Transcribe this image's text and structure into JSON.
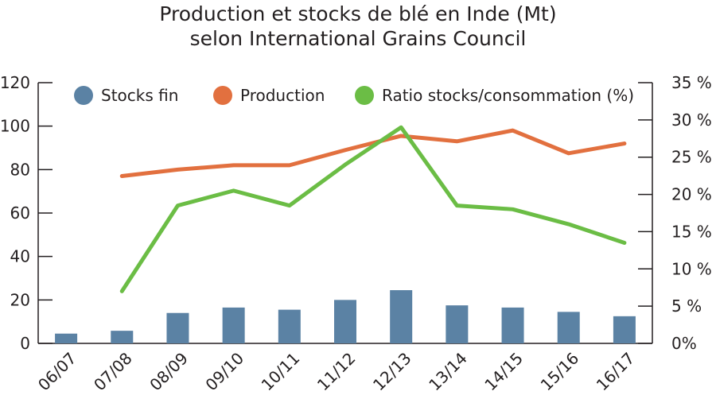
{
  "chart_data": {
    "type": "bar+line",
    "title_line1": "Production et stocks de blé en Inde (Mt)",
    "title_line2": "selon International Grains Council",
    "categories": [
      "06/07",
      "07/08",
      "08/09",
      "09/10",
      "10/11",
      "11/12",
      "12/13",
      "13/14",
      "14/15",
      "15/16",
      "16/17"
    ],
    "y_left": {
      "ticks": [
        "0",
        "20",
        "40",
        "60",
        "80",
        "100",
        "120"
      ],
      "min": 0,
      "max": 120
    },
    "y_right": {
      "ticks": [
        "0%",
        "5 %",
        "10 %",
        "15 %",
        "20 %",
        "25 %",
        "30 %",
        "35 %"
      ],
      "min": 0,
      "max": 35
    },
    "series": [
      {
        "name": "Stocks fin",
        "kind": "bar",
        "axis": "left",
        "color": "#5b82a4",
        "values": [
          4.5,
          5.8,
          14,
          16.5,
          15.5,
          20,
          24.5,
          17.5,
          16.5,
          14.5,
          12.5
        ]
      },
      {
        "name": "Production",
        "kind": "line",
        "axis": "left",
        "color": "#e2703f",
        "values": [
          null,
          77,
          80,
          82,
          82,
          89,
          95.5,
          93,
          98,
          87.5,
          92
        ]
      },
      {
        "name": "Ratio stocks/consommation (%)",
        "kind": "line",
        "axis": "right",
        "color": "#6bbd45",
        "values": [
          null,
          7,
          18.5,
          20.5,
          18.5,
          24,
          29,
          18.5,
          18,
          16,
          13.5
        ]
      }
    ],
    "legend_position": "top",
    "grid": false
  }
}
